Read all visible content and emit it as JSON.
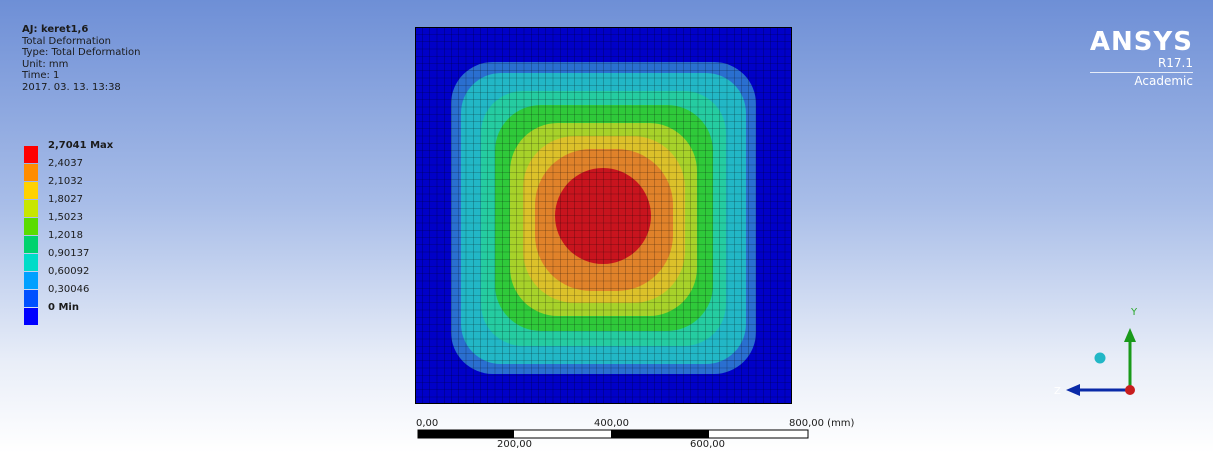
{
  "info": {
    "title": "AJ: keret1,6",
    "result_name": "Total Deformation",
    "type": "Type: Total Deformation",
    "unit": "Unit: mm",
    "time": "Time: 1",
    "date": "2017. 03. 13. 13:38"
  },
  "legend": {
    "entries": [
      {
        "label": "2,7041 Max",
        "color": "#ff0000"
      },
      {
        "label": "2,4037",
        "color": "#ff8c00"
      },
      {
        "label": "2,1032",
        "color": "#ffd200"
      },
      {
        "label": "1,8027",
        "color": "#c8e600"
      },
      {
        "label": "1,5023",
        "color": "#5adc00"
      },
      {
        "label": "1,2018",
        "color": "#00d26e"
      },
      {
        "label": "0,90137",
        "color": "#00dcc8"
      },
      {
        "label": "0,60092",
        "color": "#00a0ff"
      },
      {
        "label": "0,30046",
        "color": "#0050ff"
      },
      {
        "label": "0 Min",
        "color": "#0000ff"
      }
    ]
  },
  "logo": {
    "brand": "ANSYS",
    "version": "R17.1",
    "edition": "Academic"
  },
  "scale_bar": {
    "top_labels": [
      "0,00",
      "400,00",
      "800,00 (mm)"
    ],
    "bottom_labels": [
      "200,00",
      "600,00"
    ]
  },
  "triad": {
    "y_label": "Y",
    "z_label": "Z"
  }
}
